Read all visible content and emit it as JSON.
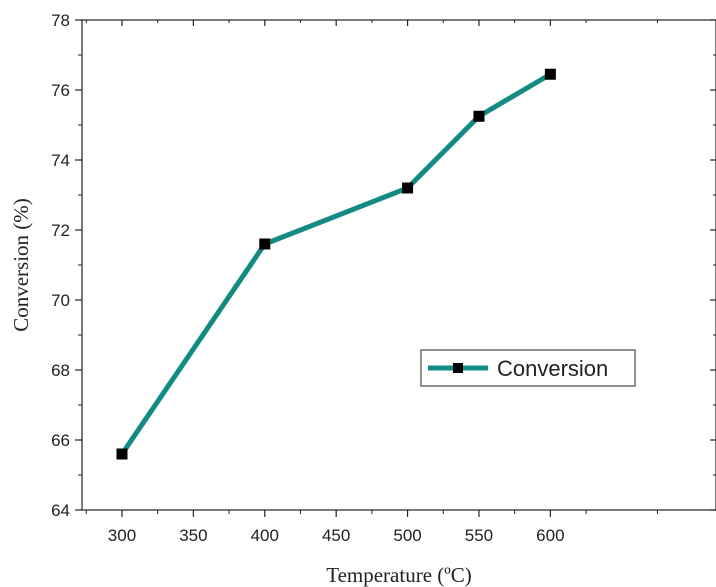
{
  "chart_data": {
    "type": "line",
    "title": "",
    "xlabel": "Temperature (ºC)",
    "ylabel": "Conversion (%)",
    "xlim": [
      272,
      716
    ],
    "ylim": [
      64,
      78
    ],
    "xticks": [
      300,
      350,
      400,
      450,
      500,
      550,
      600
    ],
    "yticks": [
      64,
      66,
      68,
      70,
      72,
      74,
      76,
      78
    ],
    "x_tick_labels": [
      "300",
      "350",
      "400",
      "450",
      "500",
      "550",
      "600"
    ],
    "y_tick_labels": [
      "64",
      "66",
      "68",
      "70",
      "72",
      "74",
      "76",
      "78"
    ],
    "grid": false,
    "legend": {
      "position": "center-right"
    },
    "series": [
      {
        "name": "Conversion",
        "color": "#138a82",
        "marker": "square",
        "marker_color": "#000000",
        "x": [
          300,
          400,
          500,
          550,
          600
        ],
        "y": [
          65.6,
          71.6,
          73.2,
          75.25,
          76.45
        ]
      }
    ]
  }
}
